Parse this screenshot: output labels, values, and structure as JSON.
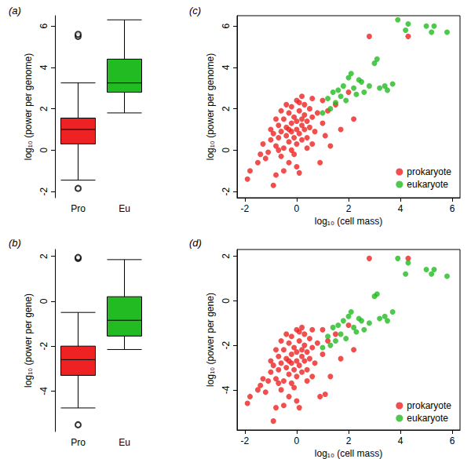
{
  "chart_data": [
    {
      "type": "boxplot",
      "title": "(a)",
      "y_label": "log₁₀ (power per genome)",
      "categories": [
        "Pro",
        "Eu"
      ],
      "colors": [
        "#ee2222",
        "#22bb22"
      ],
      "boxes": [
        [
          -1.45,
          0.3,
          1.0,
          1.55,
          3.25
        ],
        [
          1.8,
          2.8,
          3.25,
          4.4,
          6.3
        ]
      ],
      "outliers": [
        [
          5.5,
          5.6,
          -1.85
        ],
        []
      ],
      "ylim": [
        -2.3,
        6.5
      ],
      "yticks": [
        -2,
        0,
        2,
        4,
        6
      ]
    },
    {
      "type": "boxplot",
      "title": "(b)",
      "y_label": "log₁₀ (power per gene)",
      "categories": [
        "Pro",
        "Eu"
      ],
      "colors": [
        "#ee2222",
        "#22bb22"
      ],
      "boxes": [
        [
          -4.75,
          -3.3,
          -2.6,
          -2.0,
          -0.5
        ],
        [
          -2.15,
          -1.55,
          -0.85,
          0.2,
          1.85
        ]
      ],
      "outliers": [
        [
          1.9,
          1.95,
          -5.5
        ],
        []
      ],
      "ylim": [
        -5.8,
        2.3
      ],
      "yticks": [
        -4,
        -2,
        0,
        2
      ]
    },
    {
      "type": "scatter",
      "title": "(c)",
      "x_label": "log₁₀ (cell mass)",
      "y_label": "log₁₀ (power per genome)",
      "xlim": [
        -2.3,
        6.3
      ],
      "xticks": [
        -2,
        0,
        2,
        4,
        6
      ],
      "ylim": [
        -2.3,
        6.5
      ],
      "yticks": [
        -2,
        0,
        2,
        4,
        6
      ],
      "legend": "bottom-right",
      "series": [
        {
          "name": "prokaryote",
          "color": "#ee2222",
          "values": [
            [
              -1.9,
              -1.4
            ],
            [
              -1.8,
              -1.0
            ],
            [
              -1.5,
              -0.6
            ],
            [
              -1.4,
              -0.2
            ],
            [
              -1.3,
              0.3
            ],
            [
              -1.2,
              -0.4
            ],
            [
              -1.1,
              -0.1
            ],
            [
              -1.0,
              0.5
            ],
            [
              -0.9,
              -1.7
            ],
            [
              -0.9,
              0.8
            ],
            [
              -0.8,
              -1.2
            ],
            [
              -0.8,
              0.2
            ],
            [
              -0.7,
              0.6
            ],
            [
              -0.7,
              1.2
            ],
            [
              -0.6,
              -0.3
            ],
            [
              -0.6,
              0.9
            ],
            [
              -0.5,
              1.5
            ],
            [
              -0.5,
              0.1
            ],
            [
              -0.5,
              -1.0
            ],
            [
              -0.4,
              0.7
            ],
            [
              -0.4,
              1.1
            ],
            [
              -0.3,
              1.8
            ],
            [
              -0.3,
              0.4
            ],
            [
              -0.3,
              -0.6
            ],
            [
              -0.2,
              1.3
            ],
            [
              -0.2,
              0.9
            ],
            [
              -0.2,
              2.1
            ],
            [
              -0.1,
              0.6
            ],
            [
              -0.1,
              1.6
            ],
            [
              -0.1,
              -0.2
            ],
            [
              0.0,
              1.0
            ],
            [
              0.0,
              2.4
            ],
            [
              0.0,
              0.3
            ],
            [
              0.0,
              1.4
            ],
            [
              0.1,
              1.9
            ],
            [
              0.1,
              0.8
            ],
            [
              0.1,
              -1.1
            ],
            [
              0.2,
              1.2
            ],
            [
              0.2,
              2.6
            ],
            [
              0.2,
              0.5
            ],
            [
              0.3,
              1.7
            ],
            [
              0.3,
              1.0
            ],
            [
              0.3,
              2.2
            ],
            [
              0.4,
              1.4
            ],
            [
              0.4,
              0.1
            ],
            [
              0.5,
              2.0
            ],
            [
              0.5,
              1.1
            ],
            [
              0.6,
              1.6
            ],
            [
              0.6,
              2.5
            ],
            [
              0.7,
              0.9
            ],
            [
              0.8,
              1.8
            ],
            [
              0.9,
              -0.6
            ],
            [
              1.0,
              1.3
            ],
            [
              1.0,
              2.4
            ],
            [
              1.2,
              1.9
            ],
            [
              1.3,
              0.2
            ],
            [
              1.5,
              2.2
            ],
            [
              1.7,
              1.0
            ],
            [
              2.0,
              2.8
            ],
            [
              2.2,
              1.5
            ],
            [
              2.8,
              5.5
            ],
            [
              4.3,
              5.5
            ],
            [
              -0.6,
              1.9
            ],
            [
              -0.4,
              2.2
            ],
            [
              -0.2,
              0.0
            ],
            [
              0.1,
              2.3
            ],
            [
              -0.7,
              0.0
            ],
            [
              -1.0,
              1.0
            ],
            [
              0.4,
              0.6
            ],
            [
              0.0,
              -0.8
            ],
            [
              -0.3,
              1.0
            ],
            [
              0.2,
              1.5
            ],
            [
              -0.8,
              1.5
            ],
            [
              0.6,
              0.3
            ],
            [
              1.1,
              0.7
            ]
          ]
        },
        {
          "name": "eukaryote",
          "color": "#22bb22",
          "values": [
            [
              1.0,
              1.8
            ],
            [
              1.2,
              2.5
            ],
            [
              1.4,
              2.8
            ],
            [
              1.5,
              2.3
            ],
            [
              1.6,
              2.9
            ],
            [
              1.7,
              2.6
            ],
            [
              1.8,
              3.1
            ],
            [
              1.9,
              2.4
            ],
            [
              2.0,
              3.5
            ],
            [
              2.1,
              3.7
            ],
            [
              2.2,
              3.0
            ],
            [
              2.3,
              2.7
            ],
            [
              2.5,
              3.3
            ],
            [
              2.6,
              2.8
            ],
            [
              2.8,
              3.1
            ],
            [
              3.0,
              4.2
            ],
            [
              3.1,
              4.4
            ],
            [
              3.2,
              3.0
            ],
            [
              3.4,
              3.1
            ],
            [
              3.5,
              2.9
            ],
            [
              3.7,
              3.2
            ],
            [
              3.9,
              6.3
            ],
            [
              4.3,
              6.1
            ],
            [
              4.2,
              5.8
            ],
            [
              5.0,
              6.0
            ],
            [
              5.2,
              5.7
            ],
            [
              5.3,
              6.0
            ],
            [
              5.8,
              5.7
            ],
            [
              2.4,
              3.4
            ],
            [
              1.3,
              2.0
            ]
          ]
        }
      ]
    },
    {
      "type": "scatter",
      "title": "(d)",
      "x_label": "log₁₀ (cell mass)",
      "y_label": "log₁₀ (power per gene)",
      "xlim": [
        -2.3,
        6.3
      ],
      "xticks": [
        -2,
        0,
        2,
        4,
        6
      ],
      "ylim": [
        -5.8,
        2.3
      ],
      "yticks": [
        -4,
        -2,
        0,
        2
      ],
      "legend": "bottom-right",
      "series": [
        {
          "name": "prokaryote",
          "color": "#ee2222",
          "values": [
            [
              -1.9,
              -4.6
            ],
            [
              -1.8,
              -4.3
            ],
            [
              -1.5,
              -4.0
            ],
            [
              -1.4,
              -3.8
            ],
            [
              -1.3,
              -3.5
            ],
            [
              -1.2,
              -4.1
            ],
            [
              -1.1,
              -3.6
            ],
            [
              -1.0,
              -3.2
            ],
            [
              -0.9,
              -5.4
            ],
            [
              -0.9,
              -2.9
            ],
            [
              -0.8,
              -4.8
            ],
            [
              -0.8,
              -3.5
            ],
            [
              -0.7,
              -3.1
            ],
            [
              -0.7,
              -2.5
            ],
            [
              -0.6,
              -4.0
            ],
            [
              -0.6,
              -2.8
            ],
            [
              -0.5,
              -2.2
            ],
            [
              -0.5,
              -3.6
            ],
            [
              -0.5,
              -4.7
            ],
            [
              -0.4,
              -3.0
            ],
            [
              -0.4,
              -2.6
            ],
            [
              -0.3,
              -1.9
            ],
            [
              -0.3,
              -3.3
            ],
            [
              -0.3,
              -4.3
            ],
            [
              -0.2,
              -2.4
            ],
            [
              -0.2,
              -2.8
            ],
            [
              -0.2,
              -1.6
            ],
            [
              -0.1,
              -3.1
            ],
            [
              -0.1,
              -2.1
            ],
            [
              -0.1,
              -3.9
            ],
            [
              0.0,
              -2.7
            ],
            [
              0.0,
              -1.3
            ],
            [
              0.0,
              -3.4
            ],
            [
              0.0,
              -2.3
            ],
            [
              0.1,
              -1.8
            ],
            [
              0.1,
              -2.9
            ],
            [
              0.1,
              -4.8
            ],
            [
              0.2,
              -2.5
            ],
            [
              0.2,
              -1.2
            ],
            [
              0.2,
              -3.2
            ],
            [
              0.3,
              -2.0
            ],
            [
              0.3,
              -2.7
            ],
            [
              0.3,
              -1.5
            ],
            [
              0.4,
              -2.3
            ],
            [
              0.4,
              -3.6
            ],
            [
              0.5,
              -1.7
            ],
            [
              0.5,
              -2.6
            ],
            [
              0.6,
              -2.1
            ],
            [
              0.6,
              -1.3
            ],
            [
              0.7,
              -2.8
            ],
            [
              0.8,
              -1.9
            ],
            [
              0.9,
              -4.3
            ],
            [
              1.0,
              -2.4
            ],
            [
              1.0,
              -1.3
            ],
            [
              1.2,
              -1.8
            ],
            [
              1.3,
              -3.4
            ],
            [
              1.5,
              -1.5
            ],
            [
              1.7,
              -2.6
            ],
            [
              2.0,
              -1.1
            ],
            [
              2.2,
              -2.2
            ],
            [
              2.8,
              1.9
            ],
            [
              4.3,
              1.9
            ],
            [
              -0.6,
              -1.8
            ],
            [
              -0.4,
              -1.5
            ],
            [
              -0.2,
              -3.7
            ],
            [
              0.1,
              -1.4
            ],
            [
              -0.7,
              -3.7
            ],
            [
              -1.0,
              -2.7
            ],
            [
              0.4,
              -3.1
            ],
            [
              0.0,
              -4.5
            ],
            [
              -0.3,
              -2.7
            ],
            [
              0.2,
              -2.2
            ],
            [
              -0.8,
              -2.2
            ],
            [
              0.6,
              -3.4
            ],
            [
              1.1,
              -4.2
            ]
          ]
        },
        {
          "name": "eukaryote",
          "color": "#22bb22",
          "values": [
            [
              1.0,
              -2.1
            ],
            [
              1.2,
              -1.6
            ],
            [
              1.4,
              -1.2
            ],
            [
              1.5,
              -1.8
            ],
            [
              1.6,
              -1.1
            ],
            [
              1.7,
              -1.5
            ],
            [
              1.8,
              -0.9
            ],
            [
              1.9,
              -1.7
            ],
            [
              2.0,
              -0.7
            ],
            [
              2.1,
              -0.5
            ],
            [
              2.2,
              -1.2
            ],
            [
              2.3,
              -1.4
            ],
            [
              2.5,
              -0.9
            ],
            [
              2.6,
              -1.3
            ],
            [
              2.8,
              -1.0
            ],
            [
              3.0,
              0.2
            ],
            [
              3.1,
              0.3
            ],
            [
              3.2,
              -0.8
            ],
            [
              3.4,
              -0.7
            ],
            [
              3.5,
              -0.9
            ],
            [
              3.7,
              -0.5
            ],
            [
              3.9,
              1.9
            ],
            [
              4.3,
              1.7
            ],
            [
              4.2,
              1.2
            ],
            [
              5.0,
              1.4
            ],
            [
              5.2,
              1.2
            ],
            [
              5.3,
              1.4
            ],
            [
              5.8,
              1.1
            ],
            [
              2.4,
              -0.8
            ],
            [
              1.3,
              -2.0
            ]
          ]
        }
      ]
    }
  ]
}
